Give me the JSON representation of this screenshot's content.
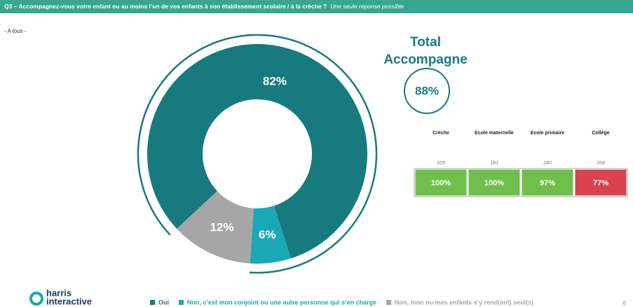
{
  "header": {
    "question": "Q3 – Accompagnez-vous votre enfant ou au moins l’un de vos enfants à son établissement scolaire / à la crèche ?",
    "note": "Une seule réponse possible"
  },
  "audience": "- A tous -",
  "chart_data": {
    "type": "pie",
    "categories": [
      "Oui",
      "Non, c’est mon conjoint ou une autre personne qui s’en charge",
      "Non, mon ou mes enfants s’y rend(ent) seul(s)"
    ],
    "values": [
      82,
      6,
      12
    ],
    "value_labels": [
      "82%",
      "6%",
      "12%"
    ],
    "colors": [
      "#167a7e",
      "#1aa8b6",
      "#a6a6a6"
    ]
  },
  "total": {
    "title": [
      "Total",
      "Accompagne"
    ],
    "value_label": "88%"
  },
  "table": {
    "columns": [
      "Crèche",
      "Ecole maternelle",
      "Ecole primaire",
      "Collège"
    ],
    "bases": [
      "109",
      "181",
      "280",
      "268"
    ],
    "cells": [
      "100%",
      "100%",
      "97%",
      "77%"
    ],
    "cell_colors": [
      "#70bf4c",
      "#70bf4c",
      "#70bf4c",
      "#d9434e"
    ]
  },
  "footer": {
    "logo": [
      "harris",
      "interactive"
    ],
    "page": "6"
  }
}
